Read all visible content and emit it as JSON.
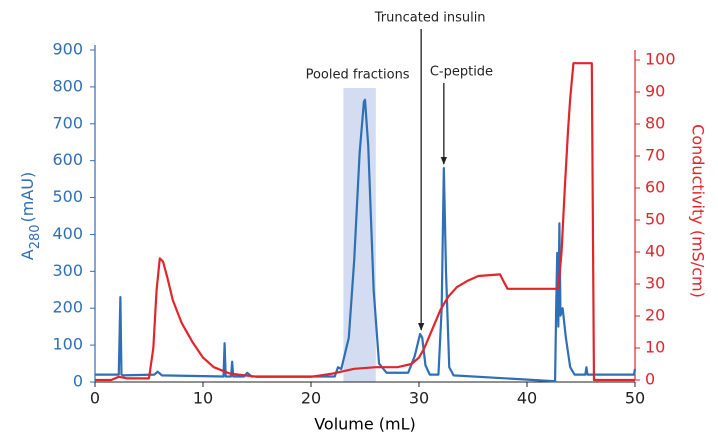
{
  "chart_data": {
    "type": "line",
    "x_label": "Volume (mL)",
    "y_label": {
      "main": "A",
      "subscript": "280",
      "unit": "(mAU)"
    },
    "y2_label": "Conductivity (mS/cm)",
    "xlim": [
      0,
      50
    ],
    "xticks": [
      0,
      10,
      20,
      30,
      40,
      50
    ],
    "ylim": [
      0,
      900
    ],
    "yticks": [
      0,
      100,
      200,
      300,
      400,
      500,
      600,
      700,
      800,
      900
    ],
    "y2lim": [
      0,
      100
    ],
    "y2ticks": [
      0,
      10,
      20,
      30,
      40,
      50,
      60,
      70,
      80,
      90,
      100
    ],
    "y_color": "#2f6fb5",
    "y2_color": "#e0262b",
    "shaded_region": {
      "label": "Pooled fractions",
      "x": [
        23,
        26
      ],
      "color": "#d3dcf0"
    },
    "annotations": [
      {
        "text": "Truncated insulin",
        "x": 30.2,
        "y": 130
      },
      {
        "text": "C-peptide",
        "x": 32.3,
        "y": 580
      }
    ],
    "series": [
      {
        "name": "A280",
        "color": "#2f6fb5",
        "x": [
          0,
          2.2,
          2.35,
          2.45,
          2.6,
          5.5,
          5.8,
          6.2,
          11.9,
          12.0,
          12.1,
          12.6,
          12.7,
          12.8,
          13.8,
          14.1,
          14.5,
          22.2,
          22.5,
          22.8,
          23.5,
          24.0,
          24.5,
          24.9,
          25.0,
          25.3,
          25.8,
          26.3,
          27.0,
          29.0,
          29.6,
          30.1,
          30.3,
          30.6,
          31.0,
          31.8,
          32.1,
          32.3,
          32.5,
          32.8,
          33.2,
          42.6,
          42.7,
          42.8,
          42.9,
          43.0,
          43.1,
          43.3,
          43.6,
          44.0,
          44.4,
          45.4,
          45.5,
          45.6,
          49.9,
          50
        ],
        "values": [
          20,
          20,
          230,
          20,
          18,
          20,
          28,
          18,
          15,
          105,
          15,
          15,
          55,
          15,
          15,
          25,
          15,
          15,
          40,
          35,
          120,
          330,
          620,
          760,
          765,
          640,
          250,
          50,
          25,
          25,
          70,
          130,
          120,
          45,
          20,
          20,
          200,
          580,
          300,
          40,
          18,
          2,
          200,
          350,
          150,
          430,
          180,
          200,
          120,
          40,
          20,
          20,
          40,
          20,
          20,
          35
        ]
      },
      {
        "name": "Conductivity",
        "color": "#e0262b",
        "axis": "y2",
        "x": [
          0,
          1.5,
          2.2,
          3,
          5,
          5.4,
          5.7,
          6.0,
          6.3,
          6.7,
          7.2,
          8,
          9,
          10,
          11,
          12.5,
          15,
          20,
          22,
          24,
          26,
          28,
          29.3,
          30,
          30.5,
          31,
          31.5,
          32,
          32.7,
          33.5,
          34.5,
          35.5,
          37.5,
          37.8,
          38.2,
          42.9,
          43.2,
          43.5,
          43.8,
          44.0,
          44.3,
          46.0,
          46.2,
          50
        ],
        "values": [
          0,
          0,
          1,
          0.5,
          0.5,
          10,
          28,
          38,
          37,
          32,
          25,
          18,
          12,
          7,
          4,
          2,
          1,
          1,
          2,
          3.5,
          4,
          4,
          5,
          7,
          10,
          14,
          18,
          22,
          26,
          29,
          31,
          32.5,
          33,
          31,
          28.5,
          28.5,
          40,
          60,
          78,
          88,
          99,
          99,
          0,
          0
        ]
      }
    ]
  }
}
